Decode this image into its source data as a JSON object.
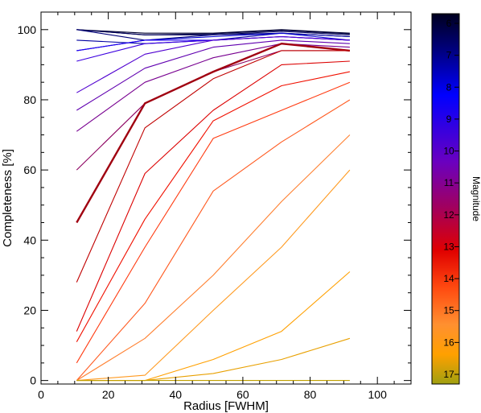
{
  "chart_data": {
    "type": "line",
    "title": "",
    "xlabel": "Radius [FWHM]",
    "ylabel": "Completeness [%]",
    "xlim": [
      0,
      110
    ],
    "ylim": [
      -1,
      105
    ],
    "x_ticks": [
      0,
      20,
      40,
      60,
      80,
      100
    ],
    "y_ticks": [
      0,
      20,
      40,
      60,
      80,
      100
    ],
    "grid": false,
    "x": [
      10.6,
      30.9,
      51.2,
      71.5,
      91.8
    ],
    "colorbar": {
      "label": "Magnitude",
      "ticks": [
        6,
        7,
        8,
        9,
        10,
        11,
        12,
        13,
        14,
        15,
        16,
        17
      ],
      "range": [
        6,
        17
      ],
      "colormap": [
        {
          "stop": 0.0,
          "color": "#000020"
        },
        {
          "stop": 0.1,
          "color": "#000080"
        },
        {
          "stop": 0.22,
          "color": "#0000ff"
        },
        {
          "stop": 0.4,
          "color": "#6a00c0"
        },
        {
          "stop": 0.52,
          "color": "#a00060"
        },
        {
          "stop": 0.64,
          "color": "#e00000"
        },
        {
          "stop": 0.74,
          "color": "#ff4a10"
        },
        {
          "stop": 0.84,
          "color": "#ff9030"
        },
        {
          "stop": 0.92,
          "color": "#ffa000"
        },
        {
          "stop": 1.0,
          "color": "#a0a010"
        }
      ]
    },
    "series": [
      {
        "magnitude": 6.0,
        "values": [
          100,
          99,
          99,
          100,
          99
        ],
        "color": "#000030"
      },
      {
        "magnitude": 6.5,
        "values": [
          100,
          98.5,
          98.8,
          99.8,
          98.8
        ],
        "color": "#000040"
      },
      {
        "magnitude": 7.0,
        "values": [
          100,
          98.5,
          98.5,
          99.5,
          98.5
        ],
        "color": "#00005a"
      },
      {
        "magnitude": 7.5,
        "values": [
          100,
          97,
          98.5,
          99,
          98
        ],
        "color": "#000078"
      },
      {
        "magnitude": 8.0,
        "values": [
          97,
          96,
          97,
          99,
          98
        ],
        "color": "#0000a0"
      },
      {
        "magnitude": 8.5,
        "values": [
          94,
          97,
          98,
          99,
          97
        ],
        "color": "#0000d0"
      },
      {
        "magnitude": 9.0,
        "values": [
          94,
          97,
          97,
          98,
          97
        ],
        "color": "#2000f0"
      },
      {
        "magnitude": 9.5,
        "values": [
          91,
          96,
          97,
          98,
          97
        ],
        "color": "#3c00e0"
      },
      {
        "magnitude": 10.0,
        "values": [
          82,
          93,
          97,
          98,
          97
        ],
        "color": "#5000d0"
      },
      {
        "magnitude": 10.5,
        "values": [
          77,
          89,
          95,
          97,
          96
        ],
        "color": "#6000b0"
      },
      {
        "magnitude": 11.0,
        "values": [
          71,
          85,
          92,
          96,
          95
        ],
        "color": "#780090"
      },
      {
        "magnitude": 11.5,
        "values": [
          60,
          79,
          88,
          94,
          94
        ],
        "color": "#8c0060"
      },
      {
        "magnitude": 12.0,
        "values": [
          45,
          79,
          88,
          96,
          94
        ],
        "color": "#a00010",
        "bold": true
      },
      {
        "magnitude": 12.5,
        "values": [
          28,
          72,
          86,
          94,
          94
        ],
        "color": "#c00000"
      },
      {
        "magnitude": 13.0,
        "values": [
          14,
          59,
          77,
          90,
          91
        ],
        "color": "#dc0000"
      },
      {
        "magnitude": 13.5,
        "values": [
          11,
          46,
          74,
          84,
          88
        ],
        "color": "#f01000"
      },
      {
        "magnitude": 14.0,
        "values": [
          5,
          38,
          69,
          77,
          85
        ],
        "color": "#ff3a10"
      },
      {
        "magnitude": 14.5,
        "values": [
          0,
          22,
          54,
          68,
          80
        ],
        "color": "#ff5a20"
      },
      {
        "magnitude": 15.0,
        "values": [
          0,
          12,
          30,
          51,
          70
        ],
        "color": "#ff8030"
      },
      {
        "magnitude": 15.5,
        "values": [
          0,
          1.5,
          20,
          38,
          60
        ],
        "color": "#ff9a20"
      },
      {
        "magnitude": 16.0,
        "values": [
          0,
          0,
          6,
          14,
          31
        ],
        "color": "#ffa000"
      },
      {
        "magnitude": 16.5,
        "values": [
          0,
          0,
          2,
          6,
          12
        ],
        "color": "#e8a000"
      },
      {
        "magnitude": 17.0,
        "values": [
          0,
          0,
          0,
          0,
          0
        ],
        "color": "#c0a000"
      }
    ]
  }
}
